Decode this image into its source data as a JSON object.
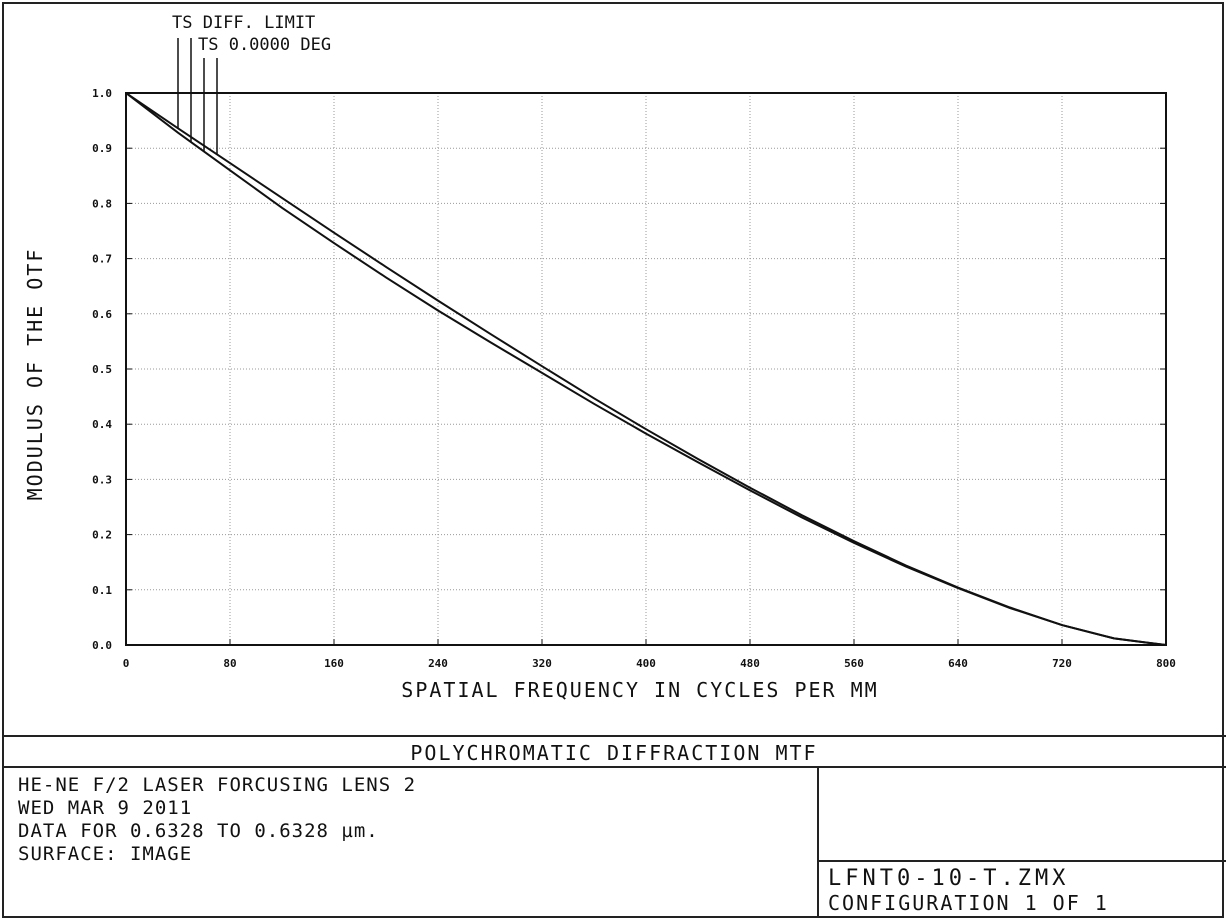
{
  "chart_data": {
    "type": "line",
    "title": "POLYCHROMATIC DIFFRACTION MTF",
    "xlabel": "SPATIAL FREQUENCY IN CYCLES PER MM",
    "ylabel": "MODULUS OF THE OTF",
    "xlim": [
      0,
      800
    ],
    "ylim": [
      0.0,
      1.0
    ],
    "x_ticks": [
      "0",
      "80",
      "160",
      "240",
      "320",
      "400",
      "480",
      "560",
      "640",
      "720",
      "800"
    ],
    "y_ticks": [
      "0.0",
      "0.1",
      "0.2",
      "0.3",
      "0.4",
      "0.5",
      "0.6",
      "0.7",
      "0.8",
      "0.9",
      "1.0"
    ],
    "grid": true,
    "legend_placement": "top-left",
    "series": [
      {
        "name": "TS DIFF. LIMIT",
        "x": [
          0,
          40,
          80,
          120,
          160,
          200,
          240,
          280,
          320,
          360,
          400,
          440,
          480,
          520,
          560,
          600,
          640,
          680,
          720,
          760,
          800
        ],
        "y": [
          1.0,
          0.936,
          0.873,
          0.81,
          0.747,
          0.685,
          0.624,
          0.564,
          0.505,
          0.447,
          0.391,
          0.337,
          0.285,
          0.235,
          0.188,
          0.144,
          0.104,
          0.068,
          0.036,
          0.012,
          0.0
        ]
      },
      {
        "name": "TS 0.0000 DEG",
        "x": [
          0,
          40,
          80,
          120,
          160,
          200,
          240,
          280,
          320,
          360,
          400,
          440,
          480,
          520,
          560,
          600,
          640,
          680,
          720,
          760,
          800
        ],
        "y": [
          1.0,
          0.928,
          0.86,
          0.792,
          0.728,
          0.666,
          0.606,
          0.549,
          0.493,
          0.437,
          0.383,
          0.331,
          0.28,
          0.231,
          0.185,
          0.142,
          0.103,
          0.067,
          0.036,
          0.012,
          0.0
        ]
      }
    ]
  },
  "info": {
    "line1": "HE-NE F/2 LASER FORCUSING LENS 2",
    "line2": "WED MAR 9 2011",
    "line3": "DATA FOR 0.6328 TO 0.6328 µm.",
    "line4": "SURFACE: IMAGE"
  },
  "footer": {
    "file": "LFNT0-10-T.ZMX",
    "config": "CONFIGURATION 1 OF 1"
  }
}
